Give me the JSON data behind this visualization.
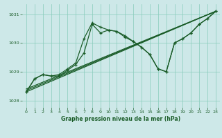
{
  "title": "Graphe pression niveau de la mer (hPa)",
  "bg_color": "#cde8e8",
  "grid_color": "#88ccbb",
  "line_color": "#1a5c28",
  "xlim": [
    -0.5,
    23.5
  ],
  "ylim": [
    1027.75,
    1031.35
  ],
  "yticks": [
    1028,
    1029,
    1030,
    1031
  ],
  "xticks": [
    0,
    1,
    2,
    3,
    4,
    5,
    6,
    7,
    8,
    9,
    10,
    11,
    12,
    13,
    14,
    15,
    16,
    17,
    18,
    19,
    20,
    21,
    22,
    23
  ],
  "line1_x": [
    0,
    1,
    2,
    3,
    4,
    5,
    6,
    7,
    8,
    9,
    10,
    11,
    12,
    13,
    14,
    15,
    16,
    17,
    18,
    19,
    20,
    21,
    22,
    23
  ],
  "line1_y": [
    1028.3,
    1028.75,
    1028.9,
    1028.85,
    1028.85,
    1029.05,
    1029.25,
    1029.65,
    1030.65,
    1030.35,
    1030.45,
    1030.4,
    1030.2,
    1030.05,
    1029.85,
    1029.6,
    1029.1,
    1029.0,
    1030.0,
    1030.15,
    1030.35,
    1030.65,
    1030.85,
    1031.1
  ],
  "line2_x": [
    0,
    1,
    2,
    3,
    4,
    5,
    6,
    7,
    8,
    9,
    10,
    11,
    12,
    13,
    14,
    15,
    16,
    17,
    18,
    19,
    20,
    21,
    22,
    23
  ],
  "line2_y": [
    1028.3,
    1028.75,
    1028.9,
    1028.85,
    1028.9,
    1029.1,
    1029.3,
    1030.15,
    1030.7,
    1030.55,
    1030.45,
    1030.4,
    1030.25,
    1030.05,
    1029.85,
    1029.6,
    1029.1,
    1029.0,
    1030.0,
    1030.15,
    1030.35,
    1030.65,
    1030.85,
    1031.1
  ],
  "line3_x": [
    0,
    23
  ],
  "line3_y": [
    1028.3,
    1031.1
  ],
  "line4_x": [
    0,
    23
  ],
  "line4_y": [
    1028.35,
    1031.1
  ],
  "line5_x": [
    0,
    23
  ],
  "line5_y": [
    1028.4,
    1031.1
  ]
}
